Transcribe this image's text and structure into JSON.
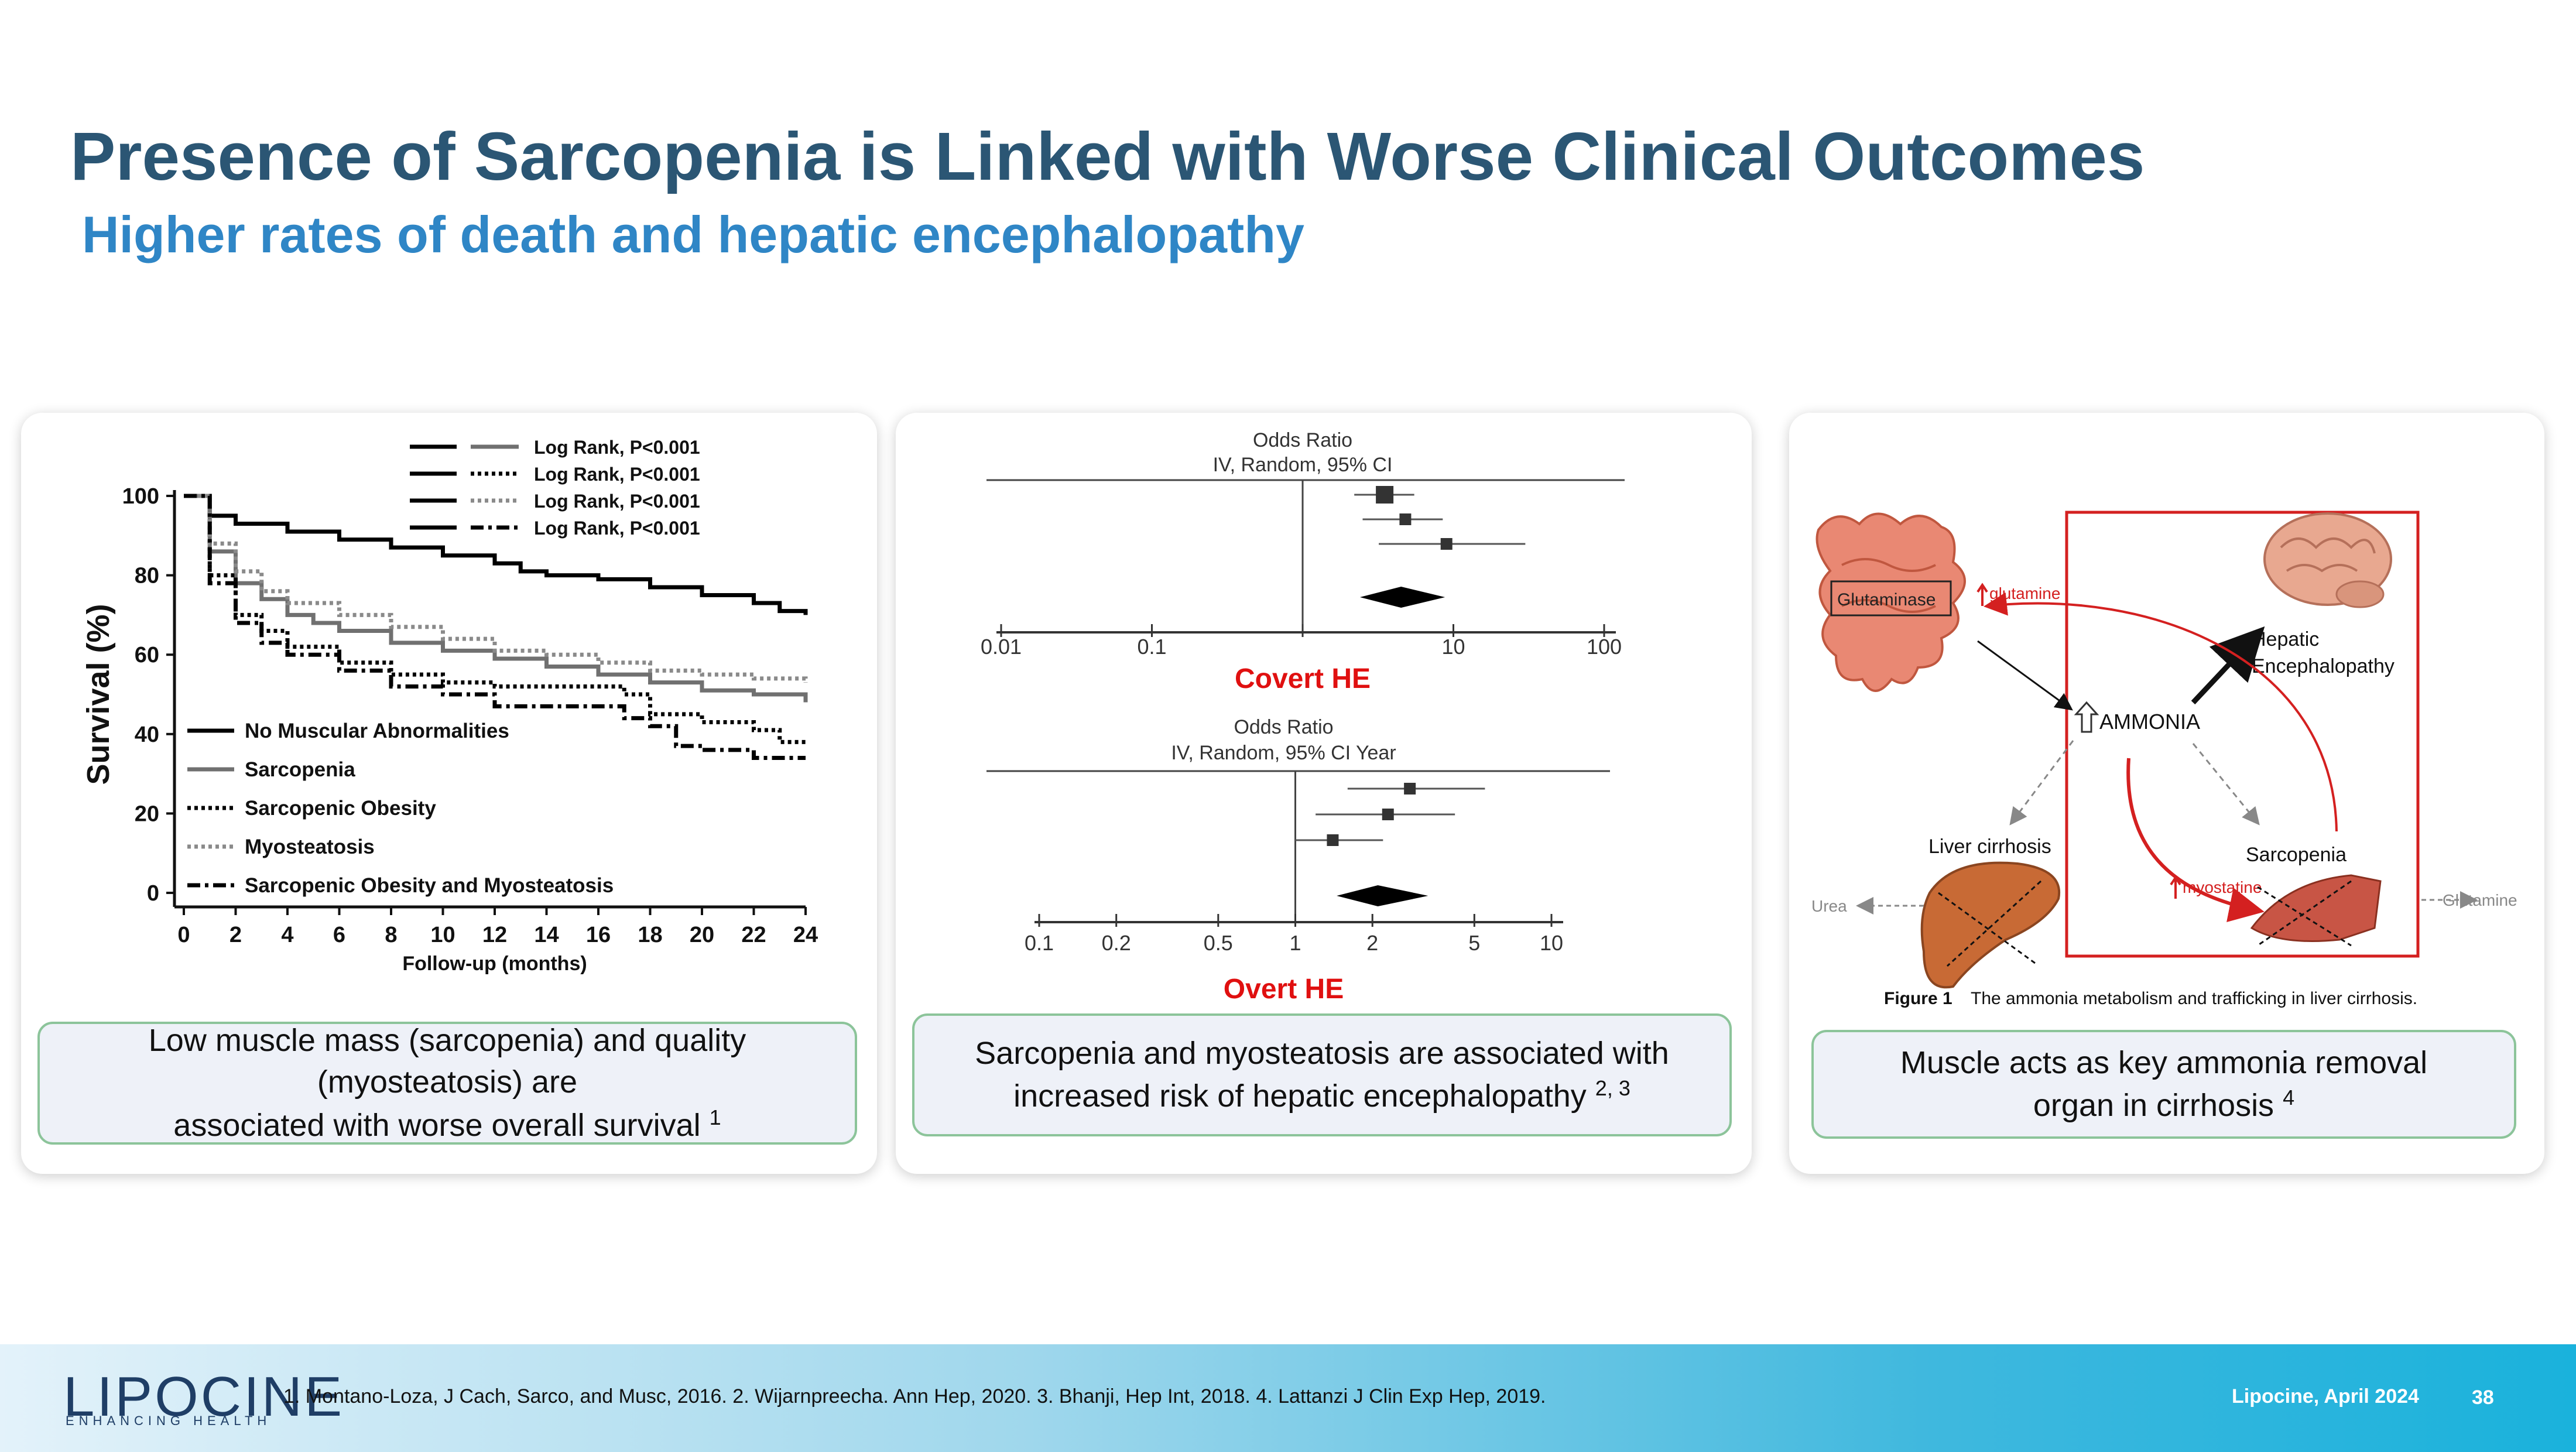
{
  "slide": {
    "title": "Presence of Sarcopenia is Linked with Worse Clinical Outcomes",
    "subtitle": "Higher rates of death and hepatic encephalopathy"
  },
  "panels": [
    {
      "caption_line1": "Low muscle mass (sarcopenia) and quality (myosteatosis) are",
      "caption_line2": "associated with worse overall survival",
      "ref": "1"
    },
    {
      "caption_line1": "Sarcopenia and myosteatosis are associated with",
      "caption_line2": "increased risk of hepatic encephalopathy",
      "ref": "2, 3"
    },
    {
      "caption_line1": "Muscle acts as key ammonia removal",
      "caption_line2": "organ in cirrhosis",
      "ref": "4"
    }
  ],
  "chart_data": [
    {
      "type": "line",
      "title": "",
      "xlabel": "Follow-up (months)",
      "ylabel": "Survival (%)",
      "xlim": [
        0,
        24
      ],
      "ylim": [
        0,
        100
      ],
      "xticks": [
        0,
        2,
        4,
        6,
        8,
        10,
        12,
        14,
        16,
        18,
        20,
        22,
        24
      ],
      "yticks": [
        0,
        20,
        40,
        60,
        80,
        100
      ],
      "log_rank": [
        "Log Rank, P<0.001",
        "Log Rank, P<0.001",
        "Log Rank, P<0.001",
        "Log Rank, P<0.001"
      ],
      "series": [
        {
          "name": "No Muscular Abnormalities",
          "style": "solid-bold",
          "x": [
            0,
            1,
            2,
            4,
            6,
            8,
            10,
            12,
            13,
            14,
            16,
            18,
            20,
            22,
            23,
            24
          ],
          "y": [
            100,
            95,
            93,
            91,
            89,
            87,
            85,
            83,
            81,
            80,
            79,
            77,
            75,
            73,
            71,
            70
          ]
        },
        {
          "name": "Sarcopenia",
          "style": "solid-gray",
          "x": [
            0,
            1,
            2,
            3,
            4,
            5,
            6,
            8,
            10,
            12,
            14,
            16,
            18,
            20,
            22,
            24
          ],
          "y": [
            100,
            86,
            78,
            74,
            70,
            68,
            66,
            63,
            61,
            59,
            57,
            55,
            53,
            51,
            50,
            48
          ]
        },
        {
          "name": "Sarcopenic Obesity",
          "style": "dotted-black",
          "x": [
            0,
            1,
            2,
            3,
            4,
            6,
            8,
            10,
            12,
            15,
            17,
            18,
            20,
            22,
            23,
            24
          ],
          "y": [
            100,
            80,
            70,
            66,
            62,
            58,
            55,
            53,
            52,
            52,
            50,
            45,
            43,
            41,
            38,
            38
          ]
        },
        {
          "name": "Myosteatosis",
          "style": "dotted-gray",
          "x": [
            0,
            1,
            2,
            3,
            4,
            6,
            8,
            10,
            12,
            14,
            16,
            18,
            20,
            22,
            24
          ],
          "y": [
            100,
            88,
            81,
            76,
            73,
            70,
            67,
            64,
            61,
            60,
            58,
            56,
            55,
            54,
            53
          ]
        },
        {
          "name": "Sarcopenic Obesity and Myosteatosis",
          "style": "dashdot-black",
          "x": [
            0,
            1,
            2,
            3,
            4,
            6,
            8,
            10,
            12,
            16,
            17,
            18,
            19,
            20,
            22,
            24
          ],
          "y": [
            100,
            78,
            68,
            63,
            60,
            56,
            52,
            50,
            47,
            47,
            44,
            42,
            37,
            36,
            34,
            34
          ]
        }
      ]
    },
    {
      "type": "forest",
      "title": "Covert HE",
      "axis_header_line1": "Odds Ratio",
      "axis_header_line2": "IV, Random, 95% CI",
      "scale": "log",
      "ticks": [
        0.01,
        0.1,
        1,
        10,
        100
      ],
      "tick_labels": [
        "0.01",
        "0.1",
        "",
        "10",
        "100"
      ],
      "estimates": [
        {
          "or": 3.5,
          "lo": 2.2,
          "hi": 5.5
        },
        {
          "or": 4.8,
          "lo": 2.5,
          "hi": 8.5
        },
        {
          "or": 9.0,
          "lo": 3.2,
          "hi": 30
        }
      ],
      "pooled": {
        "or": 4.5,
        "lo": 2.4,
        "hi": 8.8
      }
    },
    {
      "type": "forest",
      "title": "Overt HE",
      "axis_header_line1": "Odds Ratio",
      "axis_header_line2": "IV, Random, 95% CI Year",
      "scale": "log",
      "ticks": [
        0.1,
        0.2,
        0.5,
        1,
        2,
        5,
        10
      ],
      "tick_labels": [
        "0.1",
        "0.2",
        "0.5",
        "1",
        "2",
        "5",
        "10"
      ],
      "estimates": [
        {
          "or": 2.8,
          "lo": 1.6,
          "hi": 5.5
        },
        {
          "or": 2.3,
          "lo": 1.2,
          "hi": 4.2
        },
        {
          "or": 1.4,
          "lo": 1.0,
          "hi": 2.2
        }
      ],
      "pooled": {
        "or": 2.1,
        "lo": 1.45,
        "hi": 3.3
      }
    }
  ],
  "diagram": {
    "glutaminase": "Glutaminase",
    "glutamine": "glutamine",
    "hepatic_line1": "Hepatic",
    "hepatic_line2": "Encephalopathy",
    "ammonia": "AMMONIA",
    "liver": "Liver cirrhosis",
    "sarcopenia": "Sarcopenia",
    "myostatine": "myostatine",
    "urea": "Urea",
    "glutamine_out": "Glutamine",
    "figure_label": "Figure 1",
    "figure_caption": "The ammonia metabolism and trafficking in liver cirrhosis."
  },
  "footer": {
    "logo": "LIPOCINE",
    "logo_tagline": "ENHANCING HEALTH",
    "references": "1. Montano-Loza, J Cach, Sarco, and Musc, 2016. 2. Wijarnpreecha. Ann Hep, 2020. 3. Bhanji, Hep Int, 2018. 4. Lattanzi J Clin Exp Hep, 2019.",
    "date": "Lipocine, April 2024",
    "page": "38"
  },
  "colors": {
    "title": "#2b5674",
    "subtitle": "#2f86c6",
    "he_label": "#e01010",
    "diagram_red": "#d42020",
    "caption_border": "#8cc49a",
    "caption_bg": "#eef1f8"
  }
}
